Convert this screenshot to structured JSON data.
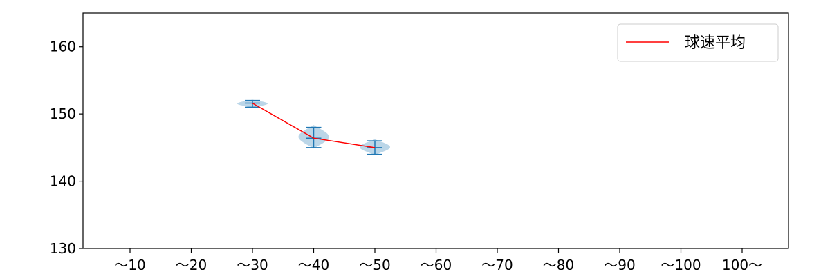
{
  "chart_data": {
    "type": "violin",
    "categories": [
      "～10",
      "～20",
      "～30",
      "～40",
      "～50",
      "～60",
      "～70",
      "～80",
      "～90",
      "～100",
      "100～"
    ],
    "ylim": [
      130,
      165
    ],
    "y_ticks": [
      130,
      140,
      150,
      160
    ],
    "grid": false,
    "legend": {
      "position": "top-right",
      "entries": [
        "球速平均"
      ]
    },
    "series": [
      {
        "name": "球速平均",
        "kind": "line",
        "color": "#ff0000",
        "points": [
          {
            "category": "～30",
            "y": 151.6
          },
          {
            "category": "～40",
            "y": 146.4
          },
          {
            "category": "～50",
            "y": 145.0
          }
        ]
      }
    ],
    "distributions": [
      {
        "category": "～30",
        "min": 151.0,
        "max": 152.0,
        "mean": 151.6
      },
      {
        "category": "～40",
        "min": 145.0,
        "max": 148.0,
        "mean": 146.4
      },
      {
        "category": "～50",
        "min": 144.0,
        "max": 146.0,
        "mean": 145.0
      }
    ],
    "colors": {
      "violin": "#1f77b4",
      "mean_line": "#ff0000"
    }
  }
}
